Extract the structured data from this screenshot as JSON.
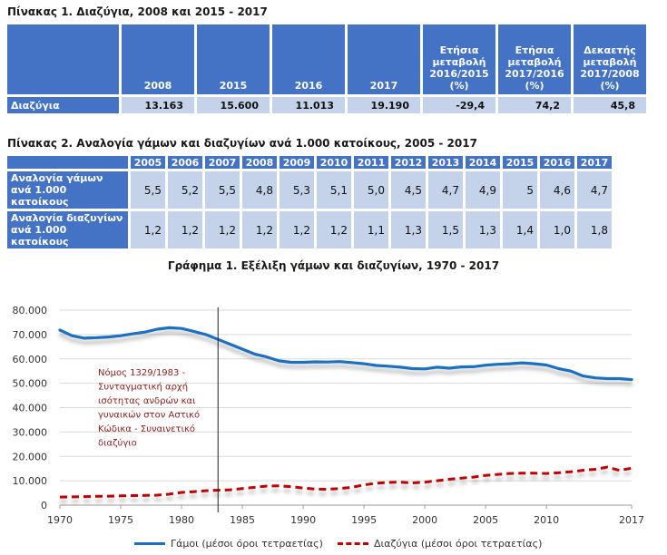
{
  "table1": {
    "title": "Πίνακας 1. Διαζύγια, 2008 και 2015 - 2017",
    "headers": [
      "2008",
      "2015",
      "2016",
      "2017",
      "Ετήσια μεταβολή 2016/2015 (%)",
      "Ετήσια μεταβολή 2017/2016 (%)",
      "Δεκαετής μεταβολή 2017/2008 (%)"
    ],
    "row": {
      "label": "Διαζύγια",
      "values": [
        "13.163",
        "15.600",
        "11.013",
        "19.190",
        "-29,4",
        "74,2",
        "45,8"
      ]
    }
  },
  "table2": {
    "title": "Πίνακας 2. Αναλογία γάμων και διαζυγίων ανά 1.000 κατοίκους, 2005 - 2017",
    "years": [
      "2005",
      "2006",
      "2007",
      "2008",
      "2009",
      "2010",
      "2011",
      "2012",
      "2013",
      "2014",
      "2015",
      "2016",
      "2017"
    ],
    "rows": [
      {
        "label1": "Αναλογία γάμων",
        "label2": "ανά 1.000 κατοίκους",
        "values": [
          "5,5",
          "5,2",
          "5,5",
          "4,8",
          "5,3",
          "5,1",
          "5,0",
          "4,5",
          "4,7",
          "4,9",
          "5",
          "4,6",
          "4,7"
        ]
      },
      {
        "label1": "Αναλογία διαζυγίων",
        "label2": "ανά 1.000 κατοίκους",
        "values": [
          "1,2",
          "1,2",
          "1,2",
          "1,2",
          "1,2",
          "1,2",
          "1,1",
          "1,3",
          "1,5",
          "1,3",
          "1,4",
          "1,0",
          "1,8"
        ]
      }
    ]
  },
  "chart_data": {
    "type": "line",
    "title": "Γράφημα 1. Εξέλιξη γάμων και διαζυγίων,  1970 - 2017",
    "ylim": [
      0,
      80000
    ],
    "xlim": [
      1970,
      2017
    ],
    "yticks": [
      0,
      10000,
      20000,
      30000,
      40000,
      50000,
      60000,
      70000,
      80000
    ],
    "ytick_labels": [
      "0",
      "10.000",
      "20.000",
      "30.000",
      "40.000",
      "50.000",
      "60.000",
      "70.000",
      "80.000"
    ],
    "xticks": [
      "1970",
      "1975",
      "1980",
      "1985",
      "1990",
      "1995",
      "2000",
      "2005",
      "2010",
      "2017"
    ],
    "x": [
      1970,
      1971,
      1972,
      1973,
      1974,
      1975,
      1976,
      1977,
      1978,
      1979,
      1980,
      1981,
      1982,
      1983,
      1984,
      1985,
      1986,
      1987,
      1988,
      1989,
      1990,
      1991,
      1992,
      1993,
      1994,
      1995,
      1996,
      1997,
      1998,
      1999,
      2000,
      2001,
      2002,
      2003,
      2004,
      2005,
      2006,
      2007,
      2008,
      2009,
      2010,
      2011,
      2012,
      2013,
      2014,
      2015,
      2016,
      2017
    ],
    "series": [
      {
        "name": "Γάμοι (μέσοι όροι τετραετίας)",
        "color": "#1f6fc0",
        "style": "solid",
        "values": [
          71800,
          69500,
          68500,
          68700,
          69000,
          69500,
          70300,
          71000,
          72200,
          72800,
          72500,
          71300,
          70000,
          68000,
          66000,
          64000,
          62000,
          60800,
          59200,
          58600,
          58600,
          58800,
          58700,
          58900,
          58500,
          58000,
          57300,
          57000,
          56600,
          56000,
          55900,
          56600,
          56200,
          56700,
          56800,
          57400,
          57800,
          58000,
          58400,
          58000,
          57500,
          56000,
          55000,
          53000,
          52200,
          51900,
          51900,
          51500
        ]
      },
      {
        "name": "Διαζύγια (μέσοι όροι τετραετίας)",
        "color": "#c00000",
        "style": "dashed",
        "values": [
          3300,
          3400,
          3500,
          3600,
          3700,
          3800,
          3900,
          4000,
          4100,
          4500,
          5200,
          5500,
          5900,
          6100,
          6300,
          6800,
          7300,
          7800,
          7900,
          7600,
          7000,
          6600,
          6500,
          6800,
          7300,
          8300,
          9000,
          9300,
          9400,
          9100,
          9400,
          10000,
          10600,
          11100,
          11500,
          12200,
          12600,
          13000,
          13100,
          13100,
          13000,
          13300,
          13700,
          14300,
          14700,
          15600,
          14300,
          15100
        ]
      }
    ],
    "marker_year": 1983,
    "annotation": [
      "Νόμος 1329/1983 -",
      "Συνταγματική αρχή",
      "ισότητας ανδρών και",
      "γυναικών στον Αστικό",
      "Κώδικα - Συναινετικό",
      "διαζύγιο"
    ],
    "legend_placement": "bottom"
  }
}
